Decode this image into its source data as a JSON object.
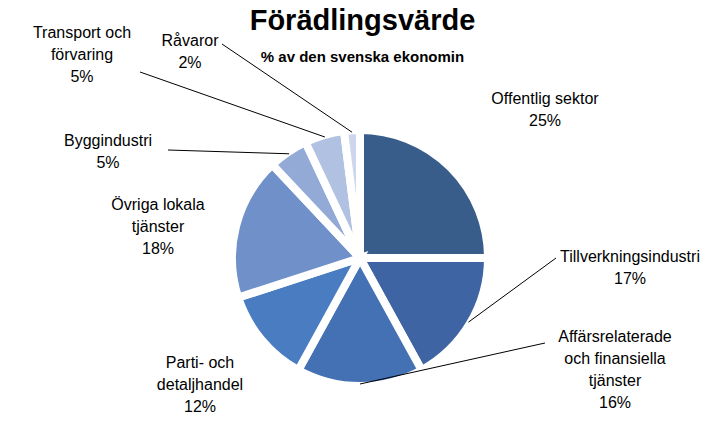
{
  "chart_data": {
    "type": "pie",
    "title": "Förädlingsvärde",
    "subtitle": "% av den svenska ekonomin",
    "categories": [
      "Offentlig sektor",
      "Tillverkningsindustri",
      "Affärsrelaterade och finansiella tjänster",
      "Parti- och detaljhandel",
      "Övriga lokala tjänster",
      "Byggindustri",
      "Transport och förvaring",
      "Råvaror"
    ],
    "values": [
      25,
      17,
      16,
      12,
      18,
      5,
      5,
      2
    ],
    "value_labels": [
      "25%",
      "17%",
      "16%",
      "12%",
      "18%",
      "5%",
      "5%",
      "2%"
    ],
    "colors": [
      "#385d8a",
      "#3e64a3",
      "#4470b4",
      "#4a7cc2",
      "#6f90c9",
      "#94aad6",
      "#b0c1e2",
      "#cdd7ec"
    ],
    "data_labels": true
  }
}
